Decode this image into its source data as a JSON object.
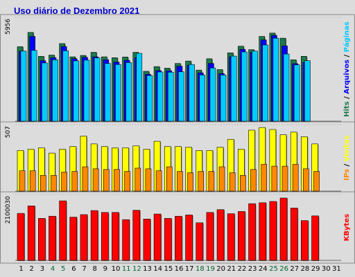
{
  "title": "Uso diário de Dezembro 2021",
  "colors": {
    "title": "#0000cc",
    "pages": "#00ccff",
    "files": "#0000ff",
    "hits": "#1c7a4a",
    "visits": "#ffff00",
    "sites": "#ff8800",
    "kbytes": "#ff0000",
    "panel_bg": "#dcdcdc",
    "weekend_label": "#006633"
  },
  "chart_data": [
    {
      "type": "bar",
      "panel": "top",
      "categories": [
        "1",
        "2",
        "3",
        "4",
        "5",
        "6",
        "7",
        "8",
        "9",
        "10",
        "11",
        "12",
        "13",
        "14",
        "15",
        "16",
        "17",
        "18",
        "19",
        "20",
        "21",
        "22",
        "23",
        "24",
        "25",
        "26",
        "27",
        "28",
        "29",
        "30",
        "31"
      ],
      "y_tick_label": "5956",
      "ylim": [
        0,
        5956
      ],
      "axis_labels": [
        "Hits",
        "Arquivos",
        "Páginas"
      ],
      "series": [
        {
          "name": "Hits",
          "values": [
            4270,
            5090,
            3720,
            3790,
            4450,
            3690,
            3770,
            3950,
            3690,
            3640,
            3680,
            3950,
            2860,
            3130,
            3040,
            3310,
            3450,
            2930,
            3580,
            2960,
            3920,
            4300,
            4100,
            4860,
            5050,
            4760,
            3520,
            3720,
            null,
            null,
            null
          ]
        },
        {
          "name": "Arquivos",
          "values": [
            4020,
            4860,
            3470,
            3640,
            4280,
            3580,
            3660,
            3690,
            3520,
            3390,
            3490,
            3640,
            2690,
            2900,
            2890,
            3150,
            3210,
            2770,
            3310,
            2730,
            3690,
            4120,
            3950,
            4660,
            4920,
            4320,
            3300,
            3370,
            null,
            null,
            null
          ]
        },
        {
          "name": "Páginas",
          "values": [
            4020,
            4060,
            3340,
            3520,
            4040,
            3460,
            3500,
            3630,
            3310,
            3250,
            3360,
            3890,
            2620,
            2820,
            2810,
            2830,
            3250,
            2650,
            3050,
            2650,
            3730,
            3970,
            4020,
            4370,
            4760,
            3850,
            3230,
            3470,
            null,
            null,
            null
          ]
        }
      ]
    },
    {
      "type": "bar",
      "panel": "middle",
      "categories": [
        "1",
        "2",
        "3",
        "4",
        "5",
        "6",
        "7",
        "8",
        "9",
        "10",
        "11",
        "12",
        "13",
        "14",
        "15",
        "16",
        "17",
        "18",
        "19",
        "20",
        "21",
        "22",
        "23",
        "24",
        "25",
        "26",
        "27",
        "28",
        "29",
        "30",
        "31"
      ],
      "y_tick_label": "507",
      "ylim": [
        0,
        507
      ],
      "axis_labels": [
        "Visitas",
        "IPs"
      ],
      "series": [
        {
          "name": "Visitas",
          "values": [
            310,
            320,
            330,
            290,
            320,
            340,
            420,
            360,
            340,
            330,
            330,
            345,
            320,
            380,
            340,
            340,
            335,
            310,
            310,
            335,
            395,
            320,
            465,
            485,
            470,
            430,
            450,
            415,
            360,
            null,
            null
          ]
        },
        {
          "name": "IPs",
          "values": [
            155,
            155,
            120,
            120,
            145,
            150,
            185,
            170,
            165,
            165,
            150,
            175,
            170,
            155,
            185,
            150,
            140,
            150,
            150,
            185,
            140,
            120,
            165,
            205,
            190,
            190,
            205,
            170,
            150,
            null,
            null
          ]
        }
      ]
    },
    {
      "type": "bar",
      "panel": "bottom",
      "categories": [
        "1",
        "2",
        "3",
        "4",
        "5",
        "6",
        "7",
        "8",
        "9",
        "10",
        "11",
        "12",
        "13",
        "14",
        "15",
        "16",
        "17",
        "18",
        "19",
        "20",
        "21",
        "22",
        "23",
        "24",
        "25",
        "26",
        "27",
        "28",
        "29",
        "30",
        "31"
      ],
      "y_tick_label": "2100030",
      "ylim": [
        0,
        2100030
      ],
      "axis_labels": [
        "KBytes"
      ],
      "series": [
        {
          "name": "KBytes",
          "values": [
            1500000,
            1740000,
            1340000,
            1410000,
            1900000,
            1380000,
            1460000,
            1590000,
            1530000,
            1530000,
            1300000,
            1600000,
            1320000,
            1480000,
            1340000,
            1410000,
            1450000,
            1200000,
            1530000,
            1620000,
            1490000,
            1560000,
            1810000,
            1840000,
            1880000,
            1990000,
            1670000,
            1270000,
            1420000,
            null,
            null
          ]
        }
      ]
    }
  ],
  "weekend_days": [
    "4",
    "5",
    "11",
    "12",
    "18",
    "19",
    "25",
    "26"
  ]
}
